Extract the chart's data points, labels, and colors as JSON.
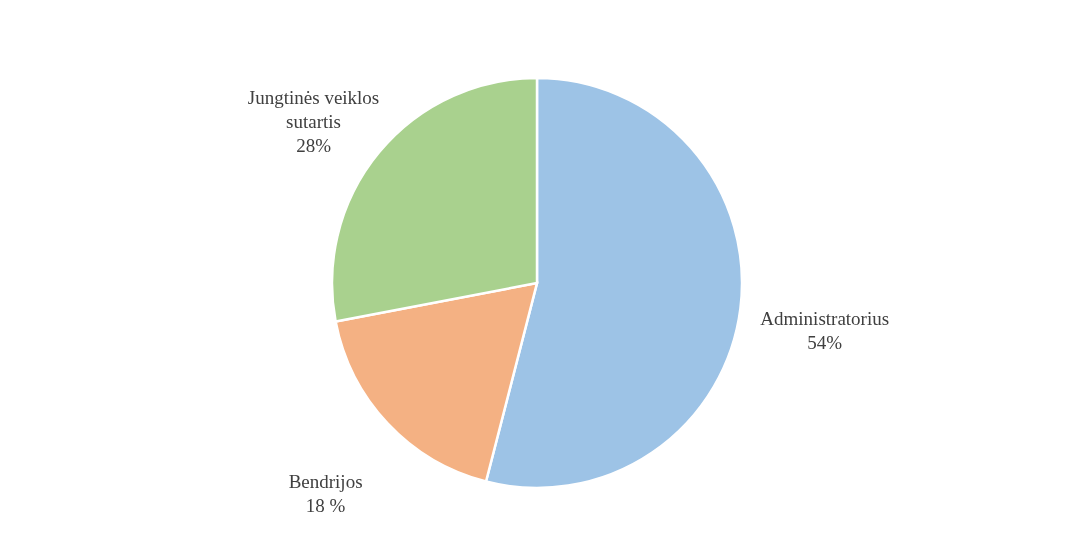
{
  "chart_data": {
    "type": "pie",
    "categories": [
      "Administratorius",
      "Bendrijos",
      "Jungtinės veiklos sutartis"
    ],
    "values": [
      54,
      18,
      28
    ],
    "value_labels": [
      "54%",
      "18 %",
      "28%"
    ],
    "colors": [
      "#9dc3e6",
      "#f4b183",
      "#a9d18e"
    ]
  }
}
